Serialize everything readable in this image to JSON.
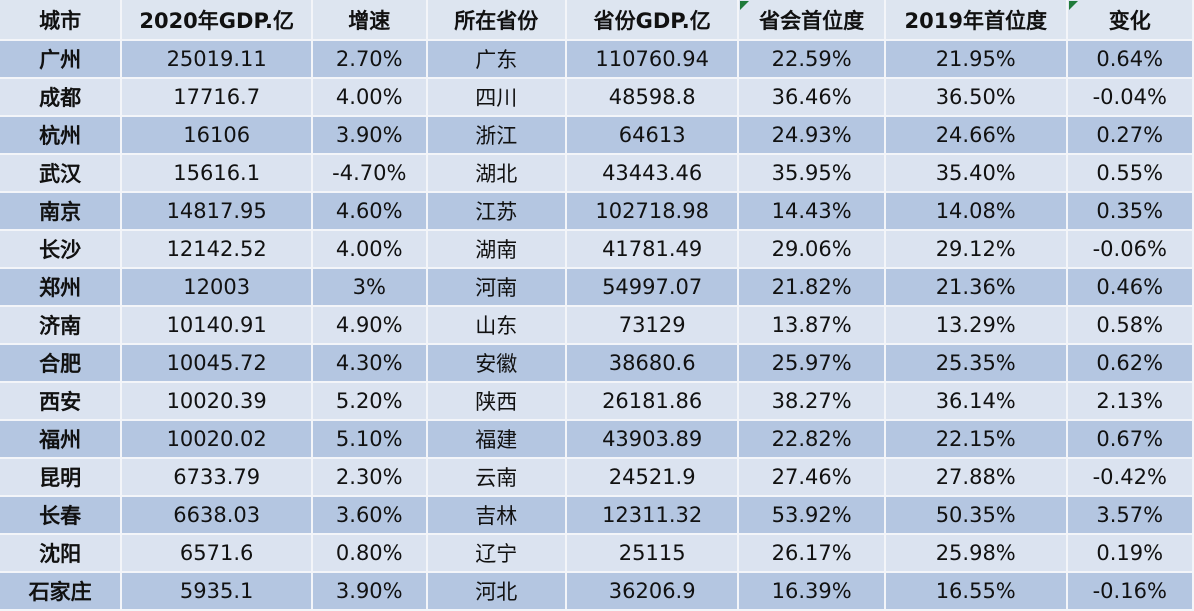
{
  "table": {
    "headers": [
      "城市",
      "2020年GDP.亿",
      "增速",
      "所在省份",
      "省份GDP.亿",
      "省会首位度",
      "2019年首位度",
      "变化"
    ],
    "rows": [
      [
        "广州",
        "25019.11",
        "2.70%",
        "广东",
        "110760.94",
        "22.59%",
        "21.95%",
        "0.64%"
      ],
      [
        "成都",
        "17716.7",
        "4.00%",
        "四川",
        "48598.8",
        "36.46%",
        "36.50%",
        "-0.04%"
      ],
      [
        "杭州",
        "16106",
        "3.90%",
        "浙江",
        "64613",
        "24.93%",
        "24.66%",
        "0.27%"
      ],
      [
        "武汉",
        "15616.1",
        "-4.70%",
        "湖北",
        "43443.46",
        "35.95%",
        "35.40%",
        "0.55%"
      ],
      [
        "南京",
        "14817.95",
        "4.60%",
        "江苏",
        "102718.98",
        "14.43%",
        "14.08%",
        "0.35%"
      ],
      [
        "长沙",
        "12142.52",
        "4.00%",
        "湖南",
        "41781.49",
        "29.06%",
        "29.12%",
        "-0.06%"
      ],
      [
        "郑州",
        "12003",
        "3%",
        "河南",
        "54997.07",
        "21.82%",
        "21.36%",
        "0.46%"
      ],
      [
        "济南",
        "10140.91",
        "4.90%",
        "山东",
        "73129",
        "13.87%",
        "13.29%",
        "0.58%"
      ],
      [
        "合肥",
        "10045.72",
        "4.30%",
        "安徽",
        "38680.6",
        "25.97%",
        "25.35%",
        "0.62%"
      ],
      [
        "西安",
        "10020.39",
        "5.20%",
        "陕西",
        "26181.86",
        "38.27%",
        "36.14%",
        "2.13%"
      ],
      [
        "福州",
        "10020.02",
        "5.10%",
        "福建",
        "43903.89",
        "22.82%",
        "22.15%",
        "0.67%"
      ],
      [
        "昆明",
        "6733.79",
        "2.30%",
        "云南",
        "24521.9",
        "27.46%",
        "27.88%",
        "-0.42%"
      ],
      [
        "长春",
        "6638.03",
        "3.60%",
        "吉林",
        "12311.32",
        "53.92%",
        "50.35%",
        "3.57%"
      ],
      [
        "沈阳",
        "6571.6",
        "0.80%",
        "辽宁",
        "25115",
        "26.17%",
        "25.98%",
        "0.19%"
      ],
      [
        "石家庄",
        "5935.1",
        "3.90%",
        "河北",
        "36206.9",
        "16.39%",
        "16.55%",
        "-0.16%"
      ]
    ]
  },
  "colors": {
    "row_dark": "#b4c6e1",
    "row_light": "#dbe3f0",
    "header": "#dde5f0",
    "comment_marker": "#1f7a3a"
  }
}
